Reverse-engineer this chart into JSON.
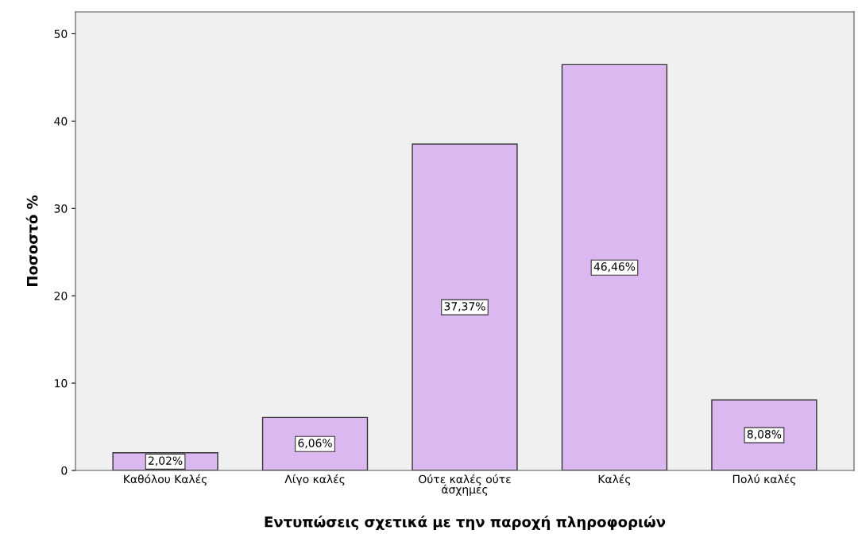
{
  "chart_data": {
    "type": "bar",
    "xlabel": "Εντυπώσεις σχετικά με την παροχή πληροφοριών",
    "ylabel": "Ποσοστό %",
    "categories": [
      "Καθόλου Καλές",
      "Λίγο καλές",
      "Ούτε καλές ούτε\nάσχημες",
      "Καλές",
      "Πολύ καλές"
    ],
    "values": [
      2.02,
      6.06,
      37.37,
      46.46,
      8.08
    ],
    "value_labels": [
      "2,02%",
      "6,06%",
      "37,37%",
      "46,46%",
      "8,08%"
    ],
    "color": "#dcb8f0",
    "ylim": [
      0,
      52.5
    ],
    "yticks": [
      0,
      10,
      20,
      30,
      40,
      50
    ],
    "grid": false
  }
}
